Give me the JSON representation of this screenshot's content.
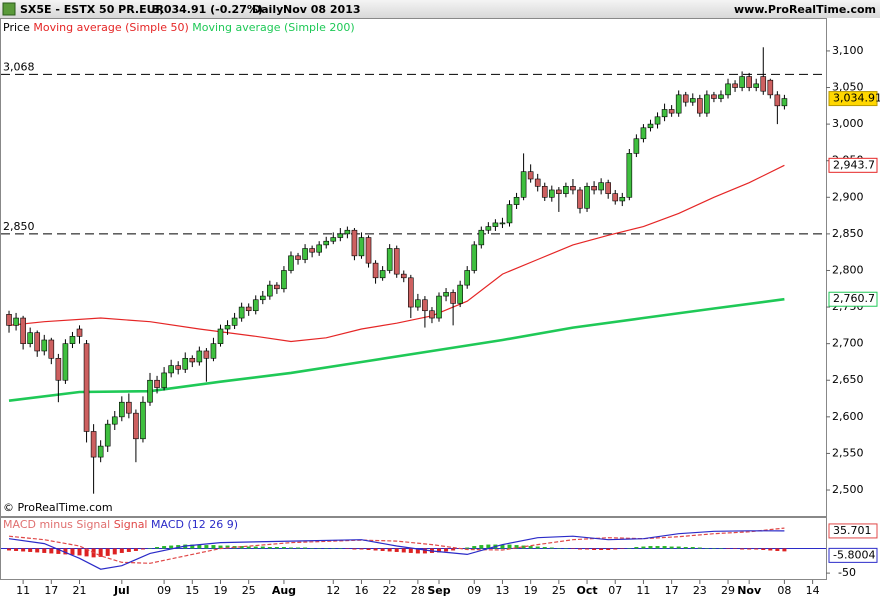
{
  "chart_data": [
    {
      "type": "candlestick",
      "header": {
        "symbol": "SX5E - ESTX 50 PR.EUR",
        "quote": "3,034.91 (-0.27%)",
        "period": "Daily",
        "date": "Nov 08 2013",
        "site": "www.ProRealTime.com"
      },
      "legend_label": "Price",
      "credit": "© ProRealTime.com",
      "colors": {
        "up": "#3fbf3f",
        "down": "#cd6060"
      },
      "open": [
        2740,
        2725,
        2735,
        2700,
        2715,
        2690,
        2705,
        2680,
        2650,
        2700,
        2720,
        2700,
        2580,
        2545,
        2560,
        2590,
        2600,
        2620,
        2605,
        2570,
        2620,
        2650,
        2640,
        2660,
        2670,
        2665,
        2680,
        2675,
        2690,
        2680,
        2700,
        2720,
        2725,
        2735,
        2750,
        2745,
        2760,
        2765,
        2780,
        2775,
        2800,
        2820,
        2815,
        2830,
        2825,
        2835,
        2840,
        2845,
        2850,
        2855,
        2820,
        2845,
        2810,
        2790,
        2800,
        2830,
        2795,
        2790,
        2750,
        2760,
        2745,
        2735,
        2765,
        2770,
        2755,
        2780,
        2800,
        2835,
        2855,
        2860,
        2865,
        2865,
        2890,
        2900,
        2935,
        2925,
        2915,
        2900,
        2910,
        2905,
        2915,
        2910,
        2885,
        2915,
        2910,
        2920,
        2905,
        2895,
        2900,
        2960,
        2980,
        2995,
        3000,
        3010,
        3020,
        3015,
        3040,
        3030,
        3035,
        3015,
        3040,
        3035,
        3040,
        3055,
        3050,
        3065,
        3050,
        3065,
        3060,
        3040,
        3025
      ],
      "high": [
        2745,
        2742,
        2738,
        2722,
        2718,
        2712,
        2708,
        2686,
        2706,
        2716,
        2725,
        2705,
        2590,
        2568,
        2596,
        2608,
        2628,
        2632,
        2610,
        2628,
        2660,
        2656,
        2668,
        2678,
        2676,
        2688,
        2684,
        2696,
        2694,
        2708,
        2726,
        2732,
        2742,
        2756,
        2755,
        2766,
        2772,
        2786,
        2784,
        2806,
        2826,
        2824,
        2836,
        2834,
        2840,
        2846,
        2852,
        2858,
        2860,
        2858,
        2852,
        2848,
        2814,
        2806,
        2836,
        2834,
        2800,
        2794,
        2768,
        2765,
        2750,
        2770,
        2776,
        2774,
        2786,
        2806,
        2840,
        2860,
        2866,
        2870,
        2872,
        2896,
        2906,
        2960,
        2945,
        2932,
        2920,
        2916,
        2914,
        2920,
        2925,
        2914,
        2920,
        2922,
        2926,
        2924,
        2910,
        2906,
        2966,
        2986,
        3000,
        3006,
        3016,
        3028,
        3026,
        3046,
        3044,
        3042,
        3040,
        3046,
        3044,
        3046,
        3062,
        3060,
        3072,
        3070,
        3062,
        3105,
        3062,
        3045,
        3040
      ],
      "low": [
        2715,
        2718,
        2692,
        2695,
        2682,
        2684,
        2672,
        2620,
        2645,
        2694,
        2700,
        2565,
        2495,
        2538,
        2552,
        2582,
        2594,
        2598,
        2538,
        2565,
        2615,
        2632,
        2636,
        2654,
        2658,
        2660,
        2668,
        2670,
        2648,
        2676,
        2696,
        2712,
        2720,
        2730,
        2738,
        2740,
        2754,
        2760,
        2768,
        2770,
        2796,
        2808,
        2810,
        2818,
        2820,
        2830,
        2836,
        2840,
        2844,
        2814,
        2816,
        2804,
        2782,
        2786,
        2796,
        2790,
        2784,
        2735,
        2745,
        2722,
        2728,
        2730,
        2758,
        2725,
        2750,
        2775,
        2796,
        2830,
        2850,
        2854,
        2858,
        2860,
        2884,
        2896,
        2920,
        2908,
        2895,
        2894,
        2880,
        2900,
        2904,
        2878,
        2880,
        2904,
        2904,
        2898,
        2890,
        2888,
        2896,
        2955,
        2975,
        2990,
        2994,
        3004,
        3010,
        3010,
        3024,
        3025,
        3010,
        3010,
        3030,
        3030,
        3035,
        3044,
        3045,
        3045,
        3045,
        3040,
        3035,
        3000,
        3020
      ],
      "close": [
        2725,
        2735,
        2700,
        2715,
        2690,
        2705,
        2680,
        2650,
        2700,
        2710,
        2710,
        2580,
        2545,
        2560,
        2590,
        2600,
        2620,
        2605,
        2570,
        2620,
        2650,
        2640,
        2660,
        2670,
        2665,
        2680,
        2675,
        2690,
        2680,
        2700,
        2720,
        2725,
        2735,
        2750,
        2745,
        2760,
        2765,
        2780,
        2775,
        2800,
        2820,
        2815,
        2830,
        2825,
        2835,
        2840,
        2845,
        2850,
        2855,
        2820,
        2845,
        2810,
        2790,
        2800,
        2830,
        2795,
        2790,
        2750,
        2760,
        2745,
        2735,
        2765,
        2770,
        2755,
        2780,
        2800,
        2835,
        2855,
        2860,
        2865,
        2865,
        2890,
        2900,
        2935,
        2925,
        2915,
        2900,
        2910,
        2905,
        2915,
        2910,
        2885,
        2915,
        2910,
        2920,
        2905,
        2895,
        2900,
        2960,
        2980,
        2995,
        3000,
        3010,
        3020,
        3015,
        3040,
        3030,
        3035,
        3015,
        3040,
        3035,
        3040,
        3055,
        3050,
        3065,
        3050,
        3055,
        3045,
        3040,
        3025,
        3034.91
      ],
      "last_price": {
        "value": 3034.91,
        "label": "3,034.91"
      },
      "series": [
        {
          "name": "Moving average (Simple 50)",
          "color": "#e52626",
          "x": [
            0,
            5,
            13,
            20,
            27,
            35,
            40,
            45,
            50,
            55,
            60,
            65,
            70,
            75,
            80,
            85,
            90,
            95,
            100,
            105,
            110
          ],
          "values": [
            2725,
            2730,
            2735,
            2730,
            2720,
            2710,
            2703,
            2708,
            2720,
            2728,
            2738,
            2758,
            2795,
            2815,
            2835,
            2848,
            2860,
            2878,
            2900,
            2920,
            2943.7
          ],
          "value_labels": [
            null,
            null,
            null,
            null,
            null,
            null,
            null,
            null,
            null,
            null,
            null,
            null,
            null,
            null,
            null,
            null,
            null,
            null,
            null,
            null,
            "2,943.7"
          ]
        },
        {
          "name": "Moving average (Simple 200)",
          "color": "#1fc957",
          "x": [
            0,
            10,
            20,
            30,
            40,
            50,
            60,
            70,
            80,
            90,
            100,
            110
          ],
          "values": [
            2622,
            2634,
            2635,
            2648,
            2660,
            2675,
            2690,
            2705,
            2722,
            2735,
            2748,
            2760.7
          ],
          "value_labels": [
            null,
            null,
            null,
            null,
            null,
            null,
            null,
            null,
            null,
            null,
            null,
            "2,760.7"
          ]
        }
      ],
      "levels": [
        {
          "value": 3068,
          "label": "3,068"
        },
        {
          "value": 2850,
          "label": "2,850"
        }
      ],
      "xlim": [
        -1.28,
        115.9
      ],
      "ylim": [
        2464.5,
        3145
      ],
      "yticks": [
        {
          "value": 3100,
          "label": "3,100"
        },
        {
          "value": 3050,
          "label": "3,050"
        },
        {
          "value": 3000,
          "label": "3,000"
        },
        {
          "value": 2950,
          "label": "2,950"
        },
        {
          "value": 2900,
          "label": "2,900"
        },
        {
          "value": 2850,
          "label": "2,850"
        },
        {
          "value": 2800,
          "label": "2,800"
        },
        {
          "value": 2750,
          "label": "2,750"
        },
        {
          "value": 2700,
          "label": "2,700"
        },
        {
          "value": 2650,
          "label": "2,650"
        },
        {
          "value": 2600,
          "label": "2,600"
        },
        {
          "value": 2550,
          "label": "2,550"
        },
        {
          "value": 2500,
          "label": "2,500"
        }
      ]
    },
    {
      "type": "macd",
      "series": [
        {
          "name": "MACD minus Signal",
          "type": "bar",
          "color": "#e07070",
          "up_color": "#28b828",
          "down_color": "#dd2222",
          "values": [
            -4,
            -5,
            -6,
            -7,
            -8,
            -9,
            -10,
            -11,
            -12,
            -13,
            -14,
            -16,
            -18,
            -17,
            -15,
            -12,
            -9,
            -7,
            -5,
            -2,
            1,
            3,
            5,
            6,
            7,
            8,
            8,
            8,
            7,
            7,
            6,
            6,
            5,
            5,
            4,
            4,
            4,
            3,
            3,
            3,
            2,
            2,
            2,
            1,
            1,
            1,
            0,
            0,
            -1,
            -2,
            -2,
            -3,
            -4,
            -5,
            -6,
            -7,
            -8,
            -9,
            -10,
            -10,
            -9,
            -8,
            -6,
            -4,
            -1,
            2,
            5,
            7,
            8,
            8,
            8,
            8,
            7,
            6,
            5,
            4,
            3,
            2,
            1,
            0,
            -1,
            -2,
            -2,
            -3,
            -3,
            -3,
            -2,
            -1,
            1,
            3,
            4,
            5,
            5,
            5,
            4,
            4,
            3,
            3,
            2,
            1,
            1,
            0,
            -1,
            -1,
            -2,
            -2,
            -2,
            -3,
            -4,
            -5,
            -5.8004
          ]
        },
        {
          "name": "Signal",
          "type": "line",
          "color": "#e04848",
          "x": [
            0,
            5,
            10,
            13,
            16,
            20,
            25,
            30,
            40,
            50,
            55,
            60,
            65,
            70,
            75,
            80,
            85,
            90,
            95,
            100,
            105,
            110
          ],
          "values": [
            25,
            18,
            5,
            -15,
            -28,
            -30,
            -15,
            0,
            12,
            17,
            15,
            8,
            -2,
            -3,
            8,
            18,
            22,
            20,
            24,
            30,
            34,
            41.5
          ]
        },
        {
          "name": "MACD (12 26 9)",
          "type": "line",
          "color": "#2b2bc8",
          "x": [
            0,
            5,
            10,
            13,
            16,
            20,
            25,
            30,
            40,
            50,
            55,
            60,
            65,
            70,
            75,
            80,
            85,
            90,
            95,
            100,
            105,
            110
          ],
          "values": [
            20,
            10,
            -20,
            -42,
            -35,
            -10,
            5,
            12,
            15,
            18,
            5,
            -5,
            -12,
            8,
            22,
            25,
            18,
            20,
            30,
            35,
            36,
            35.701
          ]
        }
      ],
      "ylim": [
        -64,
        62
      ],
      "yticks": [
        -50
      ],
      "xlim": [
        -1.28,
        115.9
      ],
      "xticks": [
        {
          "value": 2,
          "label": "11"
        },
        {
          "value": 6,
          "label": "17"
        },
        {
          "value": 10,
          "label": "21"
        },
        {
          "value": 16,
          "label": "Jul"
        },
        {
          "value": 22,
          "label": "09"
        },
        {
          "value": 26,
          "label": "15"
        },
        {
          "value": 30,
          "label": "19"
        },
        {
          "value": 34,
          "label": "25"
        },
        {
          "value": 39,
          "label": "Aug"
        },
        {
          "value": 46,
          "label": "12"
        },
        {
          "value": 50,
          "label": "16"
        },
        {
          "value": 54,
          "label": "22"
        },
        {
          "value": 58,
          "label": "28"
        },
        {
          "value": 61,
          "label": "Sep"
        },
        {
          "value": 66,
          "label": "09"
        },
        {
          "value": 70,
          "label": "13"
        },
        {
          "value": 74,
          "label": "19"
        },
        {
          "value": 78,
          "label": "25"
        },
        {
          "value": 82,
          "label": "Oct"
        },
        {
          "value": 86,
          "label": "07"
        },
        {
          "value": 90,
          "label": "11"
        },
        {
          "value": 94,
          "label": "17"
        },
        {
          "value": 98,
          "label": "23"
        },
        {
          "value": 102,
          "label": "29"
        },
        {
          "value": 105,
          "label": "Nov"
        },
        {
          "value": 110,
          "label": "08"
        },
        {
          "value": 114,
          "label": "14"
        }
      ]
    }
  ]
}
